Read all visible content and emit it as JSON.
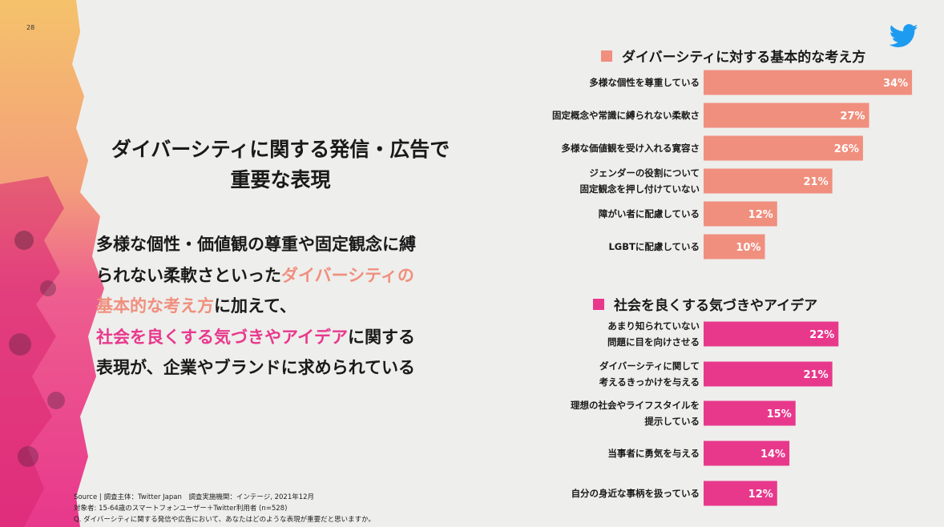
{
  "page_number": "28",
  "headline": [
    "ダイバーシティに関する発信・広告で",
    "重要な表現"
  ],
  "body": {
    "line1": "多様な個性・価値観の尊重や固定観念に縛",
    "line2": "られない柔軟さといった",
    "line2_hl": "ダイバーシティの",
    "line3_hl": "基本的な考え方",
    "line3": "に加えて、",
    "line4_hl": "社会を良くする気づきやアイデア",
    "line4": "に関する",
    "line5": "表現が、企業やブランドに求められている"
  },
  "source": [
    "Source | 調査主体：Twitter Japan　調査実施機関：インテージ, 2021年12月",
    "対象者: 15-64歳のスマートフォンユーザー＋Twitter利用者 (n=528)",
    "Q. ダイバーシティに関する発信や広告において、あなたはどのような表現が重要だと思いますか。"
  ],
  "icons": {
    "logo": "twitter-bird-icon"
  },
  "colors": {
    "orange": "#f08f7e",
    "pink": "#e8388c",
    "twitter": "#1d9bf0"
  },
  "chart_data": [
    {
      "type": "bar",
      "orientation": "horizontal",
      "title": "ダイバーシティに対する基本的な考え方",
      "color": "#f08f7e",
      "categories": [
        [
          "多様な個性を尊重している"
        ],
        [
          "固定概念や常識に縛られない柔軟さ"
        ],
        [
          "多様な価値観を受け入れる寛容さ"
        ],
        [
          "ジェンダーの役割について",
          "固定観念を押し付けていない"
        ],
        [
          "障がい者に配慮している"
        ],
        [
          "LGBTに配慮している"
        ]
      ],
      "values": [
        34,
        27,
        26,
        21,
        12,
        10
      ],
      "value_labels": [
        "34%",
        "27%",
        "26%",
        "21%",
        "12%",
        "10%"
      ]
    },
    {
      "type": "bar",
      "orientation": "horizontal",
      "title": "社会を良くする気づきやアイデア",
      "color": "#e8388c",
      "categories": [
        [
          "あまり知られていない",
          "問題に目を向けさせる"
        ],
        [
          "ダイバーシティに関して",
          "考えるきっかけを与える"
        ],
        [
          "理想の社会やライフスタイルを",
          "提示している"
        ],
        [
          "当事者に勇気を与える"
        ],
        [
          "自分の身近な事柄を扱っている"
        ]
      ],
      "values": [
        22,
        21,
        15,
        14,
        12
      ],
      "value_labels": [
        "22%",
        "21%",
        "15%",
        "14%",
        "12%"
      ]
    }
  ]
}
